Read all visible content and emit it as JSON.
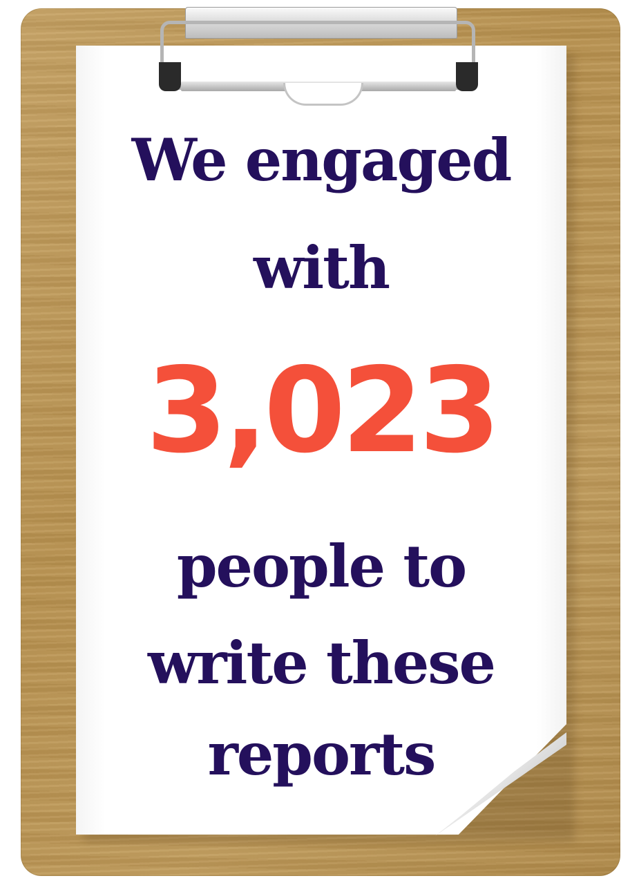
{
  "colors": {
    "headline_text": "#24105c",
    "highlight_number": "#f4503a",
    "board": "#c5a163",
    "paper": "#ffffff"
  },
  "graphic": {
    "headline_line1": "We engaged",
    "headline_line2": "with",
    "number": "3,023",
    "body_line1": "people to",
    "body_line2": "write these",
    "body_line3": "reports"
  },
  "icons": [
    "clipboard-icon",
    "paper-clip-icon"
  ]
}
